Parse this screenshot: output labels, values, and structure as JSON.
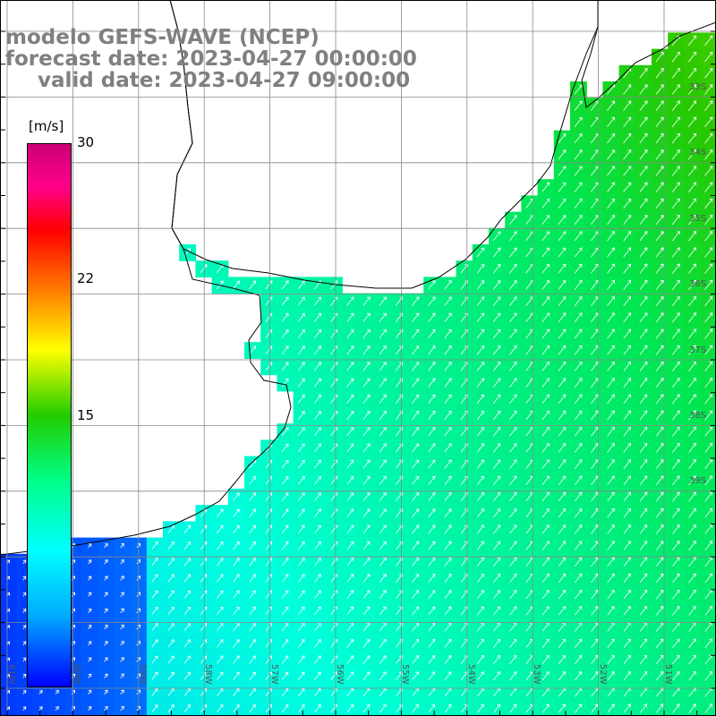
{
  "title": {
    "line1": "modelo GEFS-WAVE (NCEP)",
    "line2": "forecast date: 2023-04-27 00:00:00",
    "line3": "valid date: 2023-04-27 09:00:00"
  },
  "colorbar": {
    "unit": "[m/s]",
    "ticks": [
      "30",
      "22",
      "15"
    ],
    "min": 0,
    "max": 30
  },
  "axes": {
    "lon_labels": [
      "61W",
      "60W",
      "59W",
      "58W",
      "57W",
      "56W",
      "55W",
      "54W",
      "53W",
      "52W",
      "51W"
    ],
    "lat_labels": [
      "33S",
      "34S",
      "35S",
      "36S",
      "37S",
      "38S",
      "39S"
    ]
  },
  "colors": {
    "land": "#ffffff",
    "grid": "#888888",
    "coast": "#000000",
    "arrow": "#ffffff",
    "title": "#808080"
  }
}
